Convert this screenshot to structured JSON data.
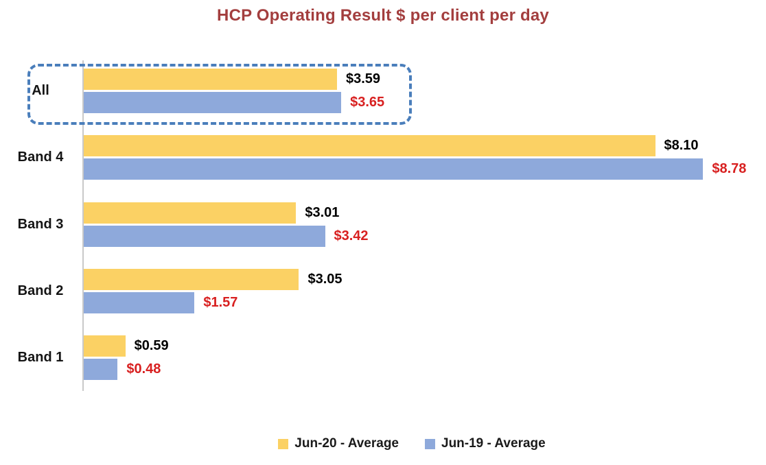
{
  "page": {
    "background": "#FFFFFF"
  },
  "chart_data": {
    "type": "bar",
    "orientation": "horizontal",
    "title": "HCP Operating Result $ per client per day",
    "title_color": "#A33E3E",
    "categories": [
      "All",
      "Band 4",
      "Band 3",
      "Band 2",
      "Band 1"
    ],
    "series": [
      {
        "name": "Jun-20 - Average",
        "color": "#FBD164",
        "values": [
          3.59,
          8.1,
          3.01,
          3.05,
          0.59
        ],
        "labels": [
          "$3.59",
          "$8.10",
          "$3.01",
          "$3.05",
          "$0.59"
        ],
        "label_color": "#000000"
      },
      {
        "name": "Jun-19 - Average",
        "color": "#8EA9DB",
        "values": [
          3.65,
          8.78,
          3.42,
          1.57,
          0.48
        ],
        "labels": [
          "$3.65",
          "$8.78",
          "$3.42",
          "$1.57",
          "$0.48"
        ],
        "label_color": "#D82020"
      }
    ],
    "xlim": [
      0,
      9
    ],
    "grid": false,
    "x_axis_labels_visible": false,
    "axis_color": "#C9C9C9",
    "legend_position": "bottom",
    "highlight": {
      "category": "All",
      "style": "dashed-rounded-box",
      "color": "#4A7EBB"
    }
  }
}
